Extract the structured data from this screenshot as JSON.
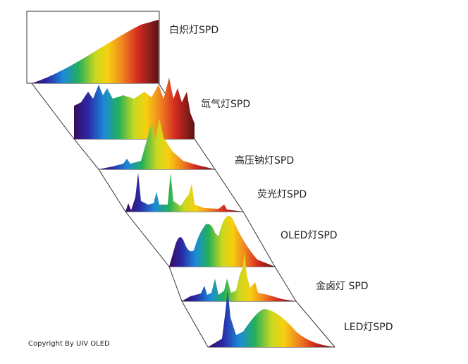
{
  "items": [
    {
      "label": "白炽灯SPD"
    },
    {
      "label": "氙气灯SPD"
    },
    {
      "label": "高压钠灯SPD"
    },
    {
      "label": "荧光灯SPD"
    },
    {
      "label": "OLED灯SPD"
    },
    {
      "label": "金卤灯 SPD"
    },
    {
      "label": "LED灯SPD"
    }
  ],
  "copyright": "Copyright By UIV OLED"
}
